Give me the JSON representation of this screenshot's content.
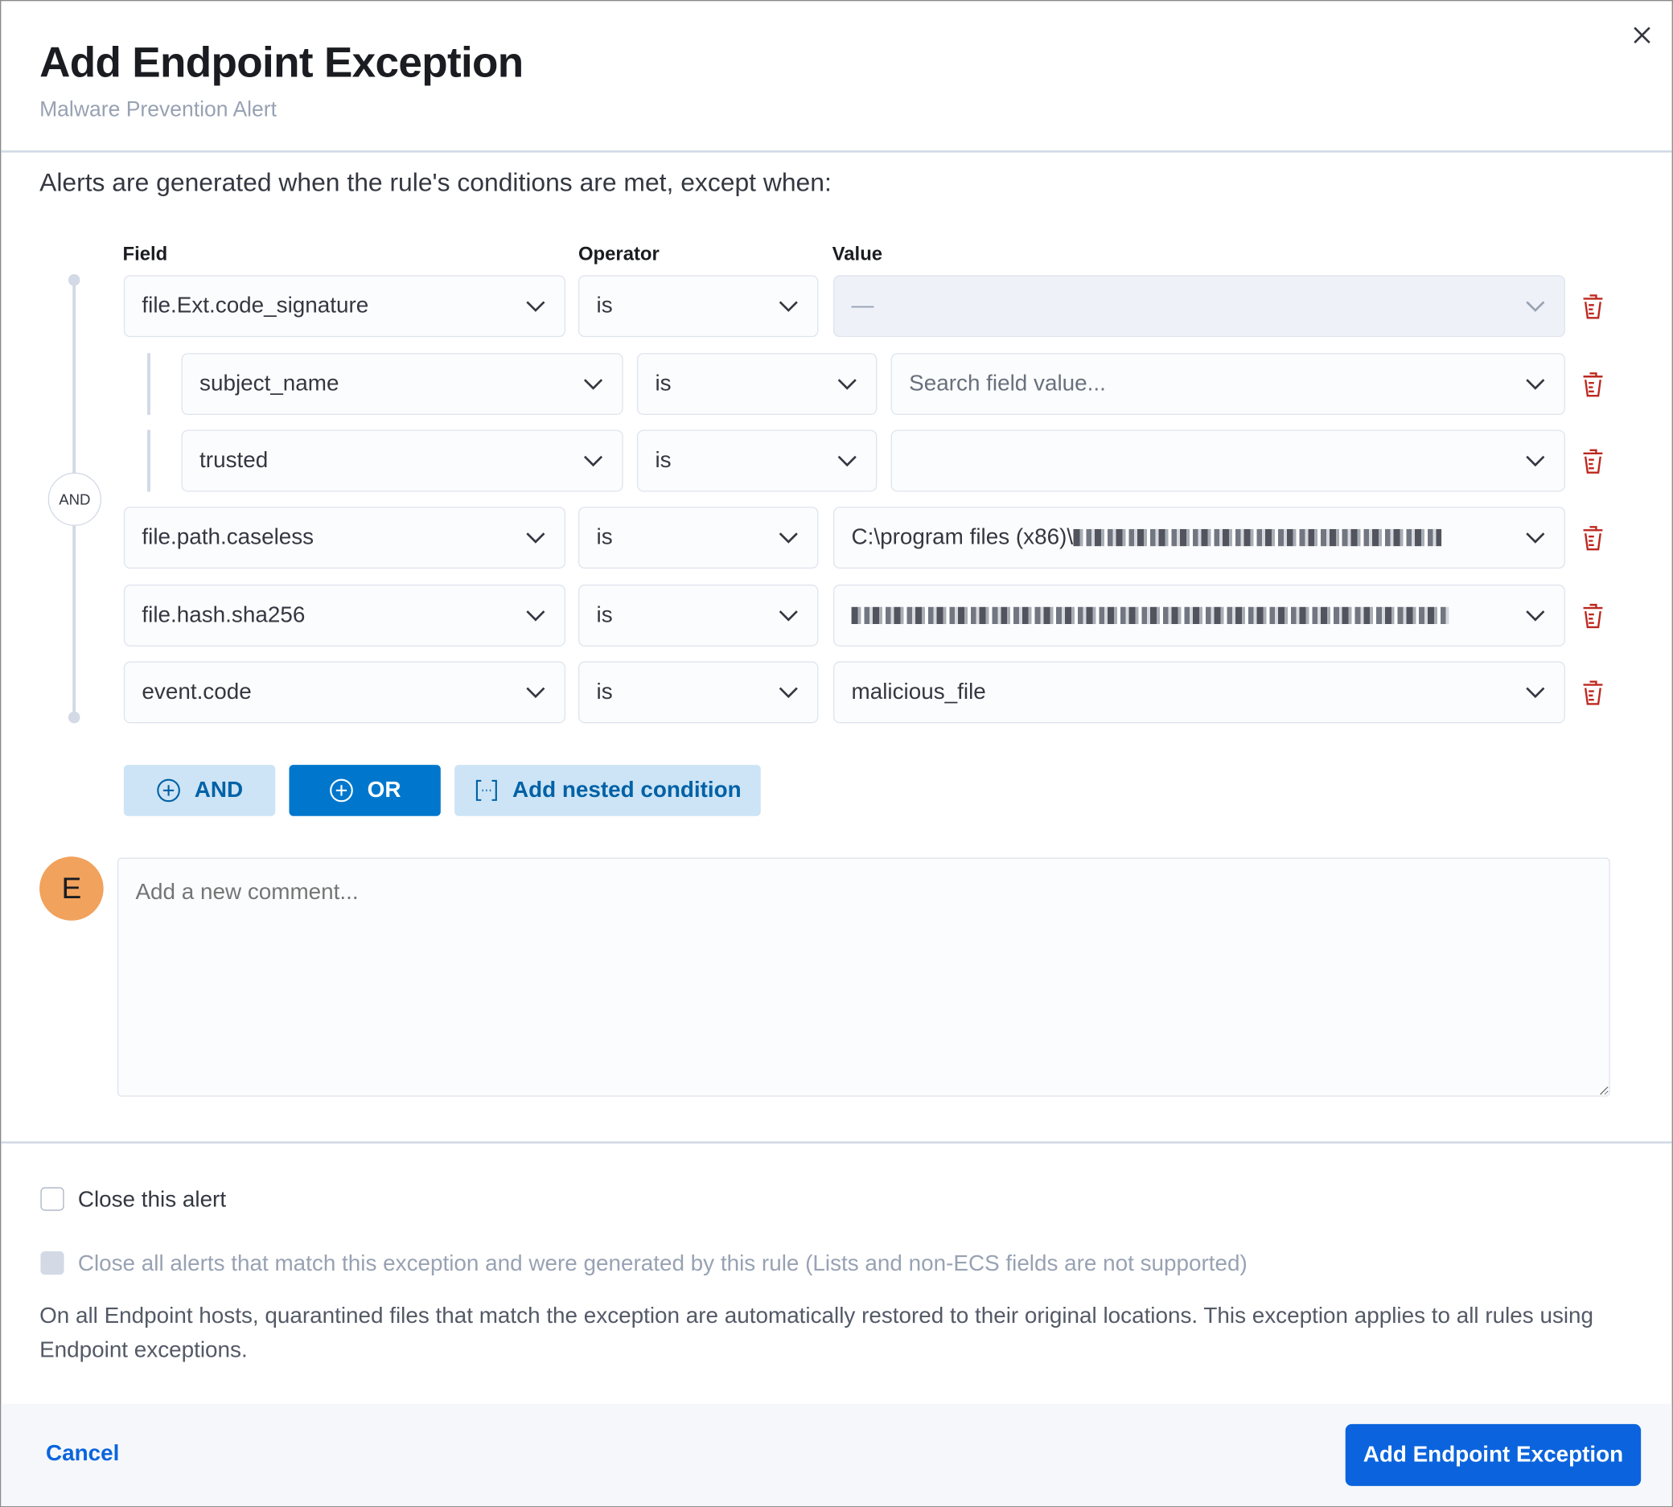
{
  "modal": {
    "title": "Add Endpoint Exception",
    "subtitle": "Malware Prevention Alert",
    "intro": "Alerts are generated when the rule's conditions are met, except when:"
  },
  "builder": {
    "headers": {
      "field": "Field",
      "operator": "Operator",
      "value": "Value"
    },
    "and_badge": "AND",
    "rows": [
      {
        "field": "file.Ext.code_signature",
        "operator": "is",
        "value": "—",
        "value_disabled": true,
        "nested": false
      },
      {
        "field": "subject_name",
        "operator": "is",
        "value": "",
        "placeholder": "Search field value...",
        "nested": true
      },
      {
        "field": "trusted",
        "operator": "is",
        "value": "",
        "nested": true
      },
      {
        "field": "file.path.caseless",
        "operator": "is",
        "value": "C:\\program files (x86)\\",
        "redacted": true,
        "nested": false
      },
      {
        "field": "file.hash.sha256",
        "operator": "is",
        "value": "",
        "redacted": true,
        "nested": false
      },
      {
        "field": "event.code",
        "operator": "is",
        "value": "malicious_file",
        "nested": false
      }
    ],
    "buttons": {
      "and": "AND",
      "or": "OR",
      "nested": "Add nested condition"
    }
  },
  "comment": {
    "avatar_initial": "E",
    "placeholder": "Add a new comment...",
    "avatar_color": "#f1a25c"
  },
  "options": {
    "close_alert": "Close this alert",
    "close_all": "Close all alerts that match this exception and were generated by this rule (Lists and non-ECS fields are not supported)",
    "info": "On all Endpoint hosts, quarantined files that match the exception are automatically restored to their original locations. This exception applies to all rules using Endpoint exceptions."
  },
  "footer": {
    "cancel": "Cancel",
    "submit": "Add Endpoint Exception"
  },
  "colors": {
    "primary": "#0b64dd",
    "danger": "#bd271e"
  }
}
